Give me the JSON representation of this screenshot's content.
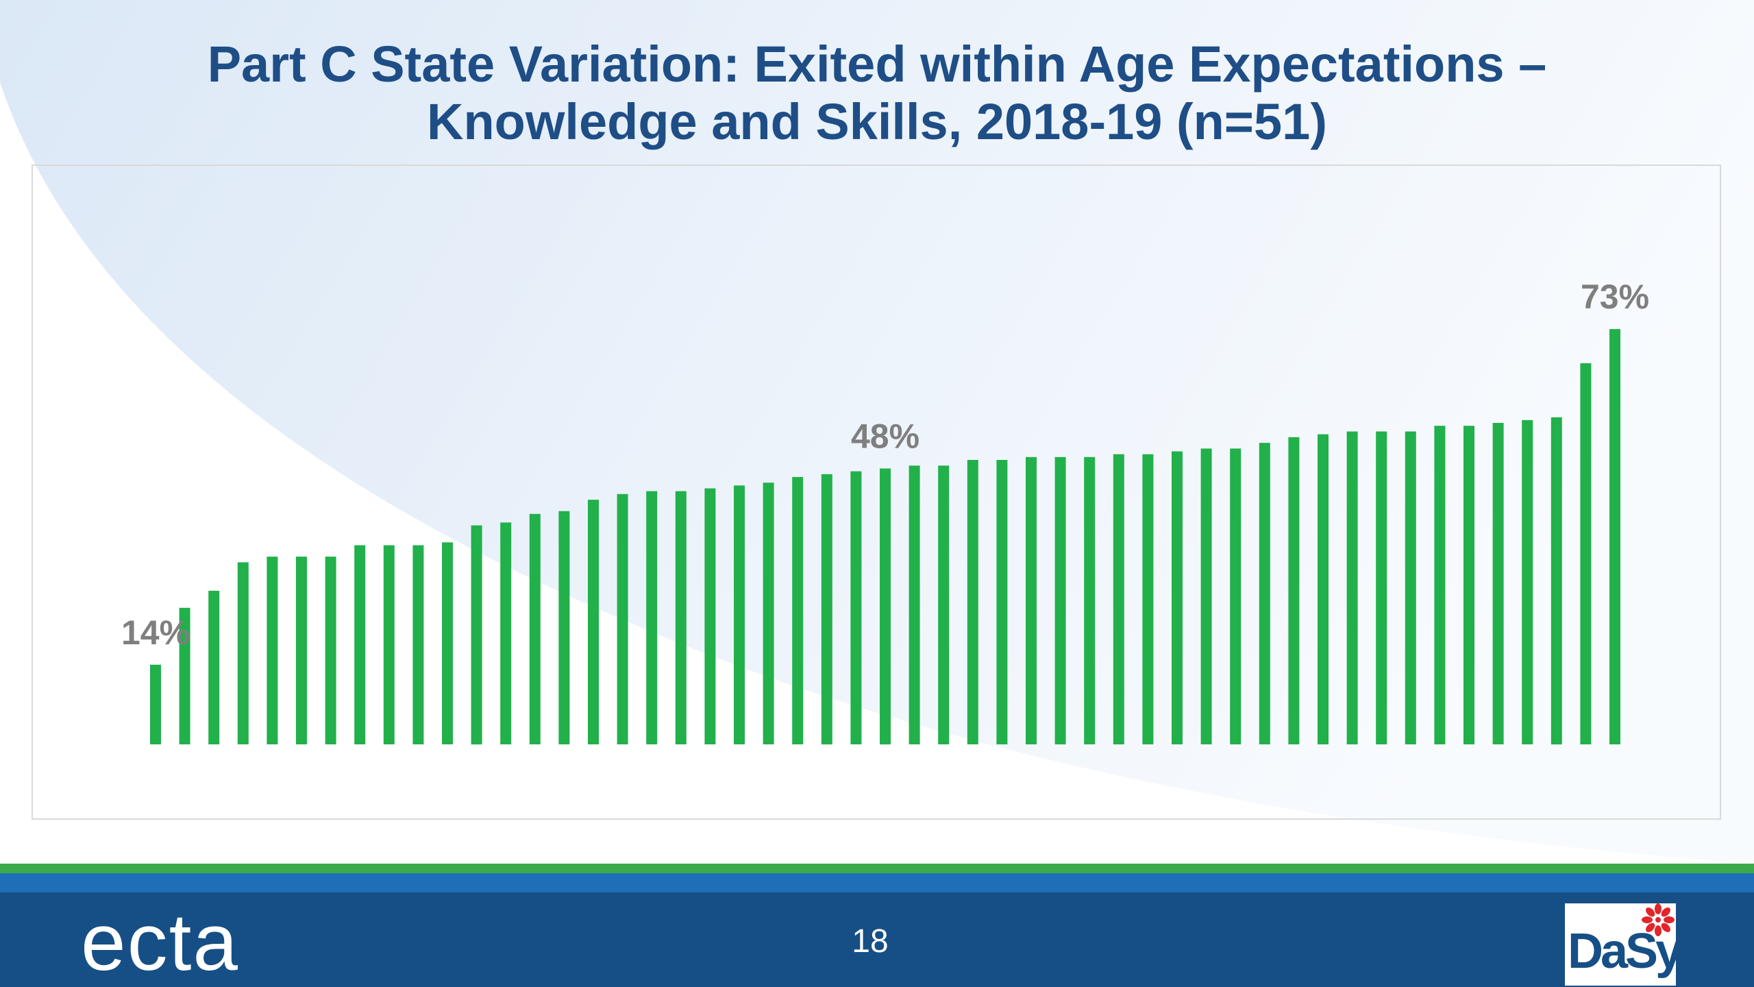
{
  "title": {
    "line1": "Part C State Variation: Exited within Age Expectations –",
    "line2": "Knowledge and Skills, 2018-19 (n=51)"
  },
  "footer": {
    "logo_left": "ecta",
    "page_number": "18",
    "logo_right": "DaSy"
  },
  "colors": {
    "bar": "#22b04b",
    "title": "#1f4e86",
    "footer_bg": "#164f85",
    "stripe_green": "#3aaa4a",
    "stripe_blue": "#1f6fb8"
  },
  "chart_data": {
    "type": "bar",
    "title": "Part C State Variation: Exited within Age Expectations – Knowledge and Skills, 2018-19 (n=51)",
    "xlabel": "",
    "ylabel": "",
    "ylim": [
      0,
      100
    ],
    "grid": false,
    "legend": "none",
    "values": [
      14,
      24,
      27,
      32,
      33,
      33,
      33,
      35,
      35,
      35,
      35.5,
      38.5,
      39,
      40.5,
      41,
      43,
      44,
      44.5,
      44.5,
      45,
      45.5,
      46,
      47,
      47.5,
      48,
      48.5,
      49,
      49,
      50,
      50,
      50.5,
      50.5,
      50.5,
      51,
      51,
      51.5,
      52,
      52,
      53,
      54,
      54.5,
      55,
      55,
      55,
      56,
      56,
      56.5,
      57,
      57.5,
      67,
      73
    ],
    "data_labels": [
      {
        "index": 0,
        "text": "14%"
      },
      {
        "index": 25,
        "text": "48%"
      },
      {
        "index": 50,
        "text": "73%"
      }
    ]
  }
}
